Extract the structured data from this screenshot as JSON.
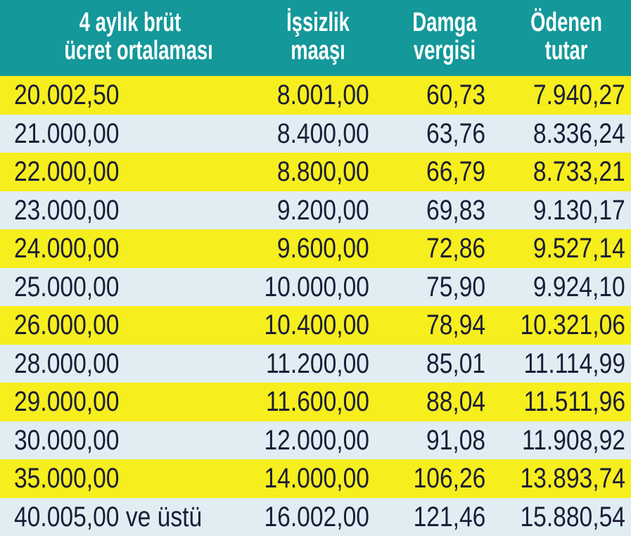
{
  "table": {
    "columns": [
      [
        "4 aylık brüt",
        "ücret ortalaması"
      ],
      [
        "İşsizlik",
        "maaşı"
      ],
      [
        "Damga",
        "vergisi"
      ],
      [
        "Ödenen",
        "tutar"
      ]
    ],
    "rows": [
      [
        "20.002,50",
        "8.001,00",
        "60,73",
        "7.940,27"
      ],
      [
        "21.000,00",
        "8.400,00",
        "63,76",
        "8.336,24"
      ],
      [
        "22.000,00",
        "8.800,00",
        "66,79",
        "8.733,21"
      ],
      [
        "23.000,00",
        "9.200,00",
        "69,83",
        "9.130,17"
      ],
      [
        "24.000,00",
        "9.600,00",
        "72,86",
        "9.527,14"
      ],
      [
        "25.000,00",
        "10.000,00",
        "75,90",
        "9.924,10"
      ],
      [
        "26.000,00",
        "10.400,00",
        "78,94",
        "10.321,06"
      ],
      [
        "28.000,00",
        "11.200,00",
        "85,01",
        "11.114,99"
      ],
      [
        "29.000,00",
        "11.600,00",
        "88,04",
        "11.511,96"
      ],
      [
        "30.000,00",
        "12.000,00",
        "91,08",
        "11.908,92"
      ],
      [
        "35.000,00",
        "14.000,00",
        "106,26",
        "13.893,74"
      ],
      [
        "40.005,00 ve üstü",
        "16.002,00",
        "121,46",
        "15.880,54"
      ]
    ]
  }
}
